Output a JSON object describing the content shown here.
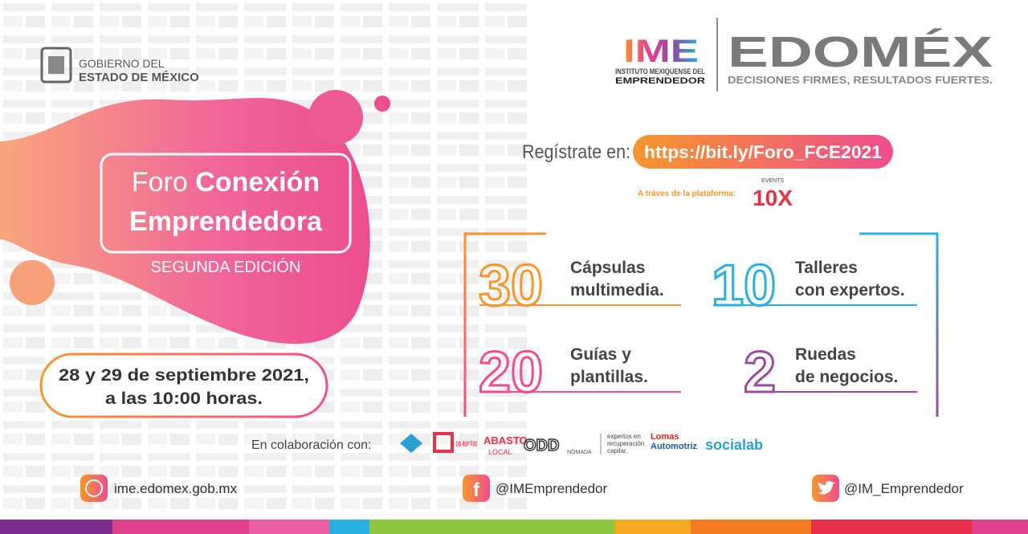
{
  "header": {
    "government": [
      "GOBIERNO DEL",
      "ESTADO DE MÉXICO"
    ],
    "ime_logo": "IME",
    "ime_name": [
      "INSTITUTO MEXIQUENSE DEL",
      "EMPRENDEDOR"
    ],
    "edomex": "EDOMÉX",
    "edomex_slogan": "DECISIONES FIRMES, RESULTADOS FUERTES."
  },
  "event": {
    "title_light": "Foro",
    "title_bold": "Conexión",
    "title_line2": "Emprendedora",
    "edition": "SEGUNDA EDICIÓN",
    "date": [
      "28 y 29 de septiembre 2021,",
      "a las 10:00 horas."
    ]
  },
  "registration": {
    "label": "Regístrate en:",
    "url": "https://bit.ly/Foro_FCE2021",
    "platform_label": "A tráves de la plataforma:",
    "platform_small": "EVENTS",
    "platform_name": "10X"
  },
  "features": [
    {
      "number": "30",
      "text": [
        "Cápsulas",
        "multimedia."
      ]
    },
    {
      "number": "10",
      "text": [
        "Talleres",
        "con expertos."
      ]
    },
    {
      "number": "20",
      "text": [
        "Guías y",
        "plantillas."
      ]
    },
    {
      "number": "2",
      "text": [
        "Ruedas",
        "de negocios."
      ]
    }
  ],
  "collaboration": {
    "label": "En colaboración con:",
    "partners": [
      "DIS RUP TIVO",
      "ABASTO",
      "LOCAL",
      "ODD",
      "NÓMADA",
      "expertos en",
      "recuperación",
      "capilar.",
      "Lomas",
      "Automotriz",
      "socialab"
    ]
  },
  "footer": {
    "website": "ime.edomex.gob.mx",
    "facebook": "@IMEmprendedor",
    "twitter": "@IM_Emprendedor"
  }
}
